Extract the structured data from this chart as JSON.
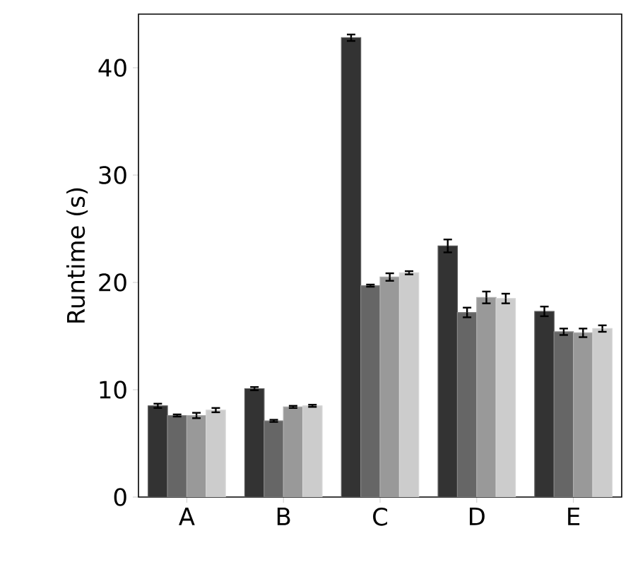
{
  "chart_data": {
    "type": "bar",
    "ylabel": "Runtime (s)",
    "categories": [
      "A",
      "B",
      "C",
      "D",
      "E"
    ],
    "series": [
      {
        "color": "#333333",
        "values": [
          8.5,
          10.1,
          42.8,
          23.4,
          17.3
        ],
        "errors": [
          0.2,
          0.15,
          0.3,
          0.6,
          0.45
        ]
      },
      {
        "color": "#666666",
        "values": [
          7.6,
          7.1,
          19.7,
          17.2,
          15.4
        ],
        "errors": [
          0.1,
          0.1,
          0.1,
          0.45,
          0.3
        ]
      },
      {
        "color": "#999999",
        "values": [
          7.6,
          8.4,
          20.5,
          18.6,
          15.3
        ],
        "errors": [
          0.25,
          0.1,
          0.35,
          0.55,
          0.4
        ]
      },
      {
        "color": "#cccccc",
        "values": [
          8.1,
          8.5,
          20.9,
          18.5,
          15.7
        ],
        "errors": [
          0.2,
          0.1,
          0.15,
          0.45,
          0.3
        ]
      }
    ],
    "ylim": [
      0,
      45
    ],
    "yticks": [
      0,
      10,
      20,
      30,
      40
    ]
  }
}
